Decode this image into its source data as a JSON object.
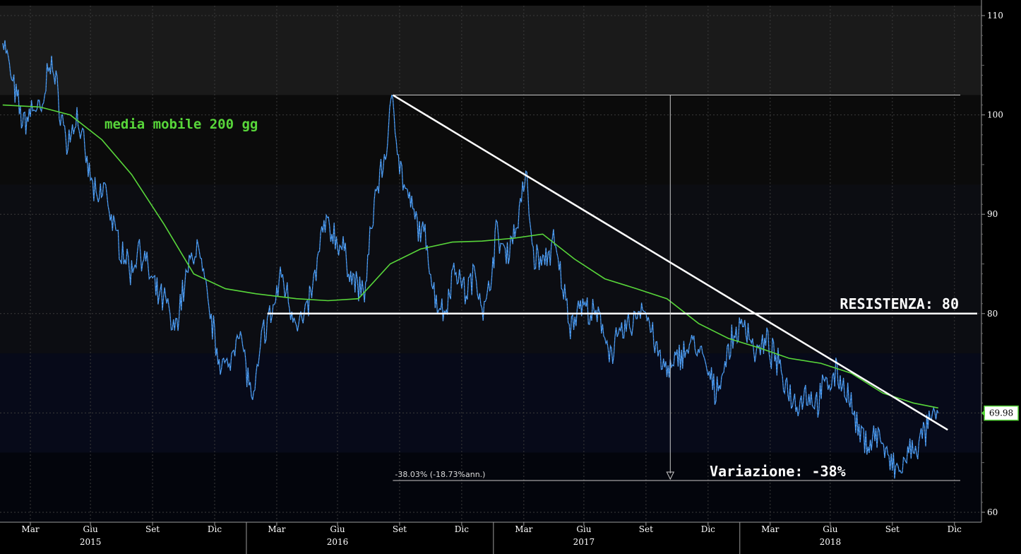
{
  "chart_data": {
    "type": "line",
    "series": [
      {
        "points": [
          [
            "2015-01-05",
            108
          ],
          [
            "2015-01-20",
            103
          ],
          [
            "2015-02-05",
            99
          ],
          [
            "2015-02-20",
            101
          ],
          [
            "2015-03-05",
            100
          ],
          [
            "2015-03-15",
            106
          ],
          [
            "2015-03-25",
            103
          ],
          [
            "2015-04-10",
            97
          ],
          [
            "2015-04-25",
            100
          ],
          [
            "2015-05-10",
            95
          ],
          [
            "2015-05-25",
            91
          ],
          [
            "2015-06-05",
            93
          ],
          [
            "2015-06-20",
            88
          ],
          [
            "2015-07-05",
            86
          ],
          [
            "2015-07-15",
            84
          ],
          [
            "2015-07-25",
            87
          ],
          [
            "2015-08-05",
            85
          ],
          [
            "2015-08-20",
            82
          ],
          [
            "2015-09-05",
            81
          ],
          [
            "2015-09-15",
            78
          ],
          [
            "2015-10-05",
            84
          ],
          [
            "2015-10-20",
            87
          ],
          [
            "2015-11-05",
            81
          ],
          [
            "2015-11-20",
            76
          ],
          [
            "2015-12-05",
            74
          ],
          [
            "2015-12-20",
            79
          ],
          [
            "2016-01-05",
            73
          ],
          [
            "2016-01-12",
            71
          ],
          [
            "2016-01-25",
            78
          ],
          [
            "2016-02-08",
            80
          ],
          [
            "2016-02-22",
            84
          ],
          [
            "2016-03-10",
            80
          ],
          [
            "2016-03-25",
            79
          ],
          [
            "2016-04-10",
            83
          ],
          [
            "2016-04-25",
            89
          ],
          [
            "2016-05-10",
            88
          ],
          [
            "2016-05-25",
            86
          ],
          [
            "2016-06-10",
            83
          ],
          [
            "2016-06-24",
            82
          ],
          [
            "2016-07-10",
            92
          ],
          [
            "2016-07-25",
            96
          ],
          [
            "2016-08-05",
            102
          ],
          [
            "2016-08-15",
            95
          ],
          [
            "2016-08-25",
            92
          ],
          [
            "2016-09-10",
            89
          ],
          [
            "2016-09-25",
            87
          ],
          [
            "2016-10-05",
            82
          ],
          [
            "2016-10-20",
            80
          ],
          [
            "2016-11-05",
            85
          ],
          [
            "2016-11-20",
            82
          ],
          [
            "2016-12-05",
            84
          ],
          [
            "2016-12-20",
            80
          ],
          [
            "2017-01-05",
            88
          ],
          [
            "2017-01-20",
            86
          ],
          [
            "2017-02-05",
            89
          ],
          [
            "2017-02-18",
            94
          ],
          [
            "2017-03-01",
            86
          ],
          [
            "2017-03-15",
            85
          ],
          [
            "2017-03-31",
            87
          ],
          [
            "2017-04-10",
            84
          ],
          [
            "2017-04-25",
            79
          ],
          [
            "2017-05-10",
            81
          ],
          [
            "2017-05-25",
            80
          ],
          [
            "2017-06-10",
            79
          ],
          [
            "2017-06-25",
            76
          ],
          [
            "2017-07-10",
            78
          ],
          [
            "2017-07-25",
            79
          ],
          [
            "2017-08-10",
            81
          ],
          [
            "2017-08-25",
            78
          ],
          [
            "2017-09-05",
            75
          ],
          [
            "2017-09-20",
            74
          ],
          [
            "2017-10-05",
            76
          ],
          [
            "2017-10-25",
            77
          ],
          [
            "2017-11-10",
            75
          ],
          [
            "2017-11-25",
            72
          ],
          [
            "2017-12-10",
            75
          ],
          [
            "2017-12-25",
            78
          ],
          [
            "2018-01-10",
            79
          ],
          [
            "2018-01-25",
            76
          ],
          [
            "2018-02-10",
            77
          ],
          [
            "2018-02-25",
            75
          ],
          [
            "2018-03-10",
            73
          ],
          [
            "2018-03-25",
            71
          ],
          [
            "2018-04-10",
            72
          ],
          [
            "2018-04-25",
            71
          ],
          [
            "2018-05-10",
            73
          ],
          [
            "2018-05-25",
            74
          ],
          [
            "2018-06-10",
            72
          ],
          [
            "2018-06-25",
            68
          ],
          [
            "2018-07-10",
            67
          ],
          [
            "2018-07-25",
            68
          ],
          [
            "2018-08-10",
            65
          ],
          [
            "2018-08-25",
            64
          ],
          [
            "2018-09-10",
            66
          ],
          [
            "2018-09-25",
            67
          ],
          [
            "2018-10-10",
            69
          ],
          [
            "2018-10-22",
            69.98
          ]
        ]
      },
      {
        "name": "media mobile 200 gg",
        "points": [
          [
            "2015-01-05",
            101
          ],
          [
            "2015-03-01",
            100.8
          ],
          [
            "2015-04-15",
            100
          ],
          [
            "2015-06-01",
            97.5
          ],
          [
            "2015-07-15",
            94
          ],
          [
            "2015-09-01",
            89
          ],
          [
            "2015-10-15",
            84
          ],
          [
            "2015-12-01",
            82.5
          ],
          [
            "2016-01-15",
            82
          ],
          [
            "2016-03-15",
            81.5
          ],
          [
            "2016-05-01",
            81.3
          ],
          [
            "2016-06-15",
            81.5
          ],
          [
            "2016-08-01",
            85
          ],
          [
            "2016-09-15",
            86.5
          ],
          [
            "2016-11-01",
            87.2
          ],
          [
            "2016-12-15",
            87.3
          ],
          [
            "2017-02-01",
            87.6
          ],
          [
            "2017-03-15",
            88
          ],
          [
            "2017-05-01",
            85.5
          ],
          [
            "2017-06-15",
            83.5
          ],
          [
            "2017-08-01",
            82.5
          ],
          [
            "2017-09-15",
            81.5
          ],
          [
            "2017-11-01",
            79
          ],
          [
            "2017-12-15",
            77.5
          ],
          [
            "2018-02-01",
            76.5
          ],
          [
            "2018-03-15",
            75.5
          ],
          [
            "2018-05-01",
            75
          ],
          [
            "2018-06-15",
            74
          ],
          [
            "2018-08-01",
            72
          ],
          [
            "2018-09-15",
            71
          ],
          [
            "2018-10-22",
            70.5
          ]
        ]
      }
    ],
    "ylim": [
      59,
      111
    ],
    "y_ticks": [
      60,
      70,
      80,
      90,
      100,
      110
    ],
    "x_tick_labels": [
      {
        "date": "2015-02-15",
        "label": "Mar"
      },
      {
        "date": "2015-05-15",
        "label": "Giu"
      },
      {
        "date": "2015-08-15",
        "label": "Set"
      },
      {
        "date": "2015-11-15",
        "label": "Dic"
      },
      {
        "date": "2016-02-15",
        "label": "Mar"
      },
      {
        "date": "2016-05-15",
        "label": "Giu"
      },
      {
        "date": "2016-08-15",
        "label": "Set"
      },
      {
        "date": "2016-11-15",
        "label": "Dic"
      },
      {
        "date": "2017-02-15",
        "label": "Mar"
      },
      {
        "date": "2017-05-15",
        "label": "Giu"
      },
      {
        "date": "2017-08-15",
        "label": "Set"
      },
      {
        "date": "2017-11-15",
        "label": "Dic"
      },
      {
        "date": "2018-02-15",
        "label": "Mar"
      },
      {
        "date": "2018-05-15",
        "label": "Giu"
      },
      {
        "date": "2018-08-15",
        "label": "Set"
      },
      {
        "date": "2018-11-15",
        "label": "Dic"
      }
    ],
    "year_labels": [
      {
        "date": "2015-05-15",
        "label": "2015"
      },
      {
        "date": "2016-05-15",
        "label": "2016"
      },
      {
        "date": "2017-05-15",
        "label": "2017"
      },
      {
        "date": "2018-05-15",
        "label": "2018"
      }
    ],
    "year_separators": [
      "2016-01-01",
      "2017-01-01",
      "2018-01-01"
    ],
    "x_start": "2015-01-01",
    "x_end": "2018-12-25",
    "grid": true,
    "last_value_label": "69.98",
    "annotations": {
      "ma_label": "media mobile 200 gg",
      "resistance_label": "RESISTENZA: 80",
      "resistance_level": 80,
      "resistance_from": "2016-02-01",
      "change_label": "Variazione: -38%",
      "measure_text": "-38.03% (-18.73%ann.)",
      "measure_from": "2016-08-05",
      "measure_to": "2018-11-20",
      "measure_high": 102,
      "measure_low": 63.2,
      "measure_marker_date": "2017-09-20",
      "trendline": [
        [
          "2016-08-05",
          102
        ],
        [
          "2018-11-05",
          68.3
        ]
      ]
    },
    "colors": {
      "price": "#3d8fe8",
      "price_highlight": "#ffffff",
      "ma": "#58d63a",
      "annotation": "#ffffff",
      "axis_text": "#ffffff",
      "grid": "#3b3b3b",
      "last_value_tag_bg": "#ffffff",
      "last_value_tag_border": "#58d63a"
    }
  }
}
